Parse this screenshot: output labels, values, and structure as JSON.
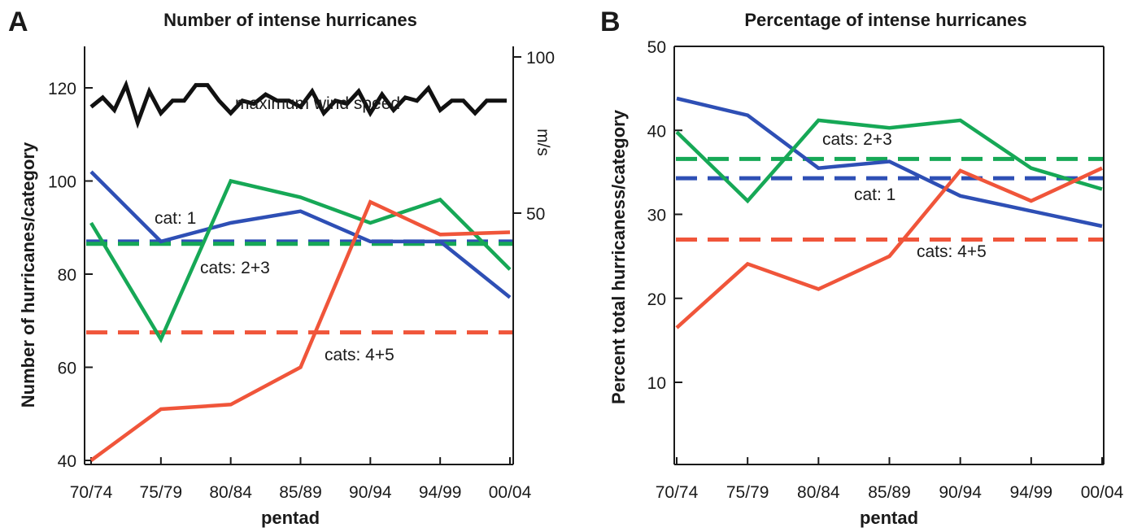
{
  "colors": {
    "cat1": "#2e4fb5",
    "cats23": "#16a856",
    "cats45": "#f0553a",
    "wind": "#111111"
  },
  "chart_data": [
    {
      "panel": "A",
      "type": "line",
      "title": "Number of intense hurricanes",
      "xlabel": "pentad",
      "ylabel": "Number of hurricanes/category",
      "categories": [
        "70/74",
        "75/79",
        "80/84",
        "85/89",
        "90/94",
        "94/99",
        "00/04"
      ],
      "ylim": [
        40,
        130
      ],
      "yticks": [
        40,
        60,
        80,
        100,
        120
      ],
      "y2label": "m/s",
      "y2lim": [
        45,
        100
      ],
      "y2ticks": [
        50,
        100
      ],
      "series": [
        {
          "key": "cat1",
          "values": [
            102,
            87,
            91,
            93.5,
            87,
            87,
            75
          ]
        },
        {
          "key": "cats23",
          "values": [
            91,
            66,
            100,
            96.5,
            91,
            96,
            81
          ]
        },
        {
          "key": "cats45",
          "values": [
            40,
            51,
            52,
            60,
            95.5,
            88.5,
            89
          ]
        },
        {
          "key": "wind",
          "x": [
            0,
            0.167,
            0.333,
            0.5,
            0.667,
            0.833,
            1,
            1.167,
            1.333,
            1.5,
            1.667,
            1.833,
            2,
            2.167,
            2.333,
            2.5,
            2.667,
            2.833,
            3,
            3.167,
            3.333,
            3.5,
            3.667,
            3.833,
            4,
            4.167,
            4.333,
            4.5,
            4.667,
            4.833,
            5,
            5.167,
            5.333,
            5.5,
            5.667,
            5.833,
            6
          ],
          "values": [
            84,
            87,
            83,
            91,
            79,
            89,
            82,
            86,
            86,
            91,
            91,
            86,
            82,
            86,
            85,
            88,
            86,
            86,
            84,
            89,
            82,
            86,
            85,
            89,
            82,
            88,
            83,
            87,
            86,
            90,
            83,
            86,
            86,
            82,
            86,
            86,
            86
          ]
        }
      ],
      "reference_lines": [
        {
          "key": "cat1",
          "value": 87
        },
        {
          "key": "cats23",
          "value": 86.5
        },
        {
          "key": "cats45",
          "value": 67.5
        }
      ],
      "labels": {
        "wind": "maximum wind speed",
        "cat1": "cat: 1",
        "cats23": "cats: 2+3",
        "cats45": "cats: 4+5"
      }
    },
    {
      "panel": "B",
      "type": "line",
      "title": "Percentage of intense hurricanes",
      "xlabel": "pentad",
      "ylabel": "Percent  total hurricaness/category",
      "categories": [
        "70/74",
        "75/79",
        "80/84",
        "85/89",
        "90/94",
        "94/99",
        "00/04"
      ],
      "ylim": [
        0,
        50
      ],
      "yticks": [
        10,
        20,
        30,
        40,
        50
      ],
      "series": [
        {
          "key": "cat1",
          "values": [
            43.8,
            41.8,
            35.5,
            36.3,
            32.2,
            30.4,
            28.6
          ]
        },
        {
          "key": "cats23",
          "values": [
            39.8,
            31.6,
            41.2,
            40.3,
            41.2,
            35.5,
            33
          ]
        },
        {
          "key": "cats45",
          "values": [
            16.5,
            24.1,
            21.1,
            25,
            35.2,
            31.6,
            35.5
          ]
        }
      ],
      "reference_lines": [
        {
          "key": "cat1",
          "value": 34.3
        },
        {
          "key": "cats23",
          "value": 36.6
        },
        {
          "key": "cats45",
          "value": 27
        }
      ],
      "labels": {
        "cats23": "cats: 2+3",
        "cat1": "cat: 1",
        "cats45": "cats: 4+5"
      }
    }
  ]
}
